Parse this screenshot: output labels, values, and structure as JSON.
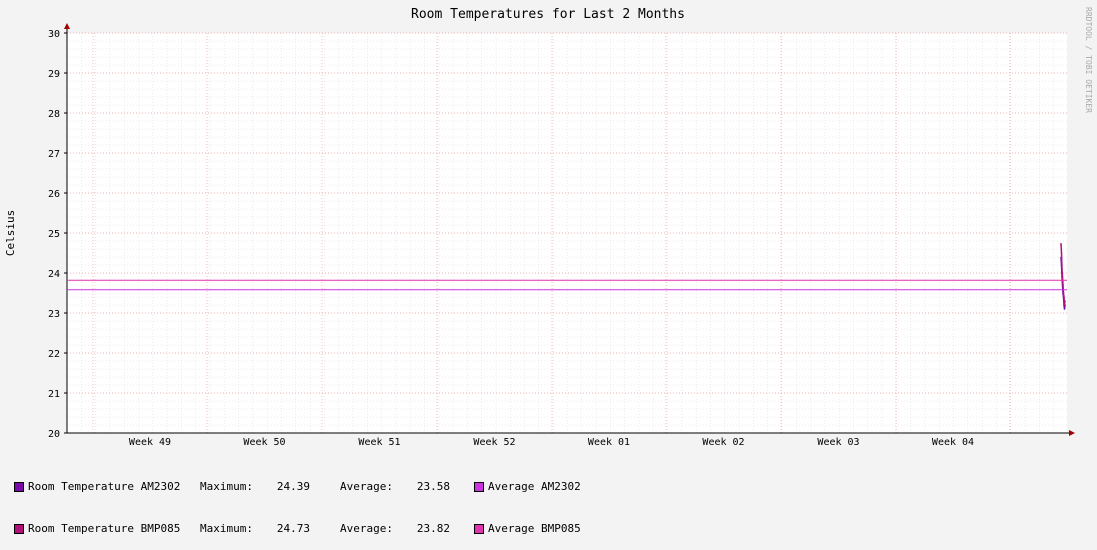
{
  "chart_data": {
    "type": "line",
    "title": "Room Temperatures for Last 2 Months",
    "ylabel": "Celsius",
    "watermark": "RRDTOOL / TOBI OETIKER",
    "ylim": [
      20,
      30
    ],
    "yticks": [
      "20",
      "21",
      "22",
      "23",
      "24",
      "25",
      "26",
      "27",
      "28",
      "29",
      "30"
    ],
    "xticks": [
      "Week 49",
      "Week 50",
      "Week 51",
      "Week 52",
      "Week 01",
      "Week 02",
      "Week 03",
      "Week 04"
    ],
    "grid": true,
    "series": [
      {
        "name": "Room Temperature AM2302",
        "color": "#7a0aa8",
        "x": [
          0.994,
          0.9945,
          0.995,
          0.9955,
          0.996,
          0.9965,
          0.997,
          0.9975,
          0.998
        ],
        "values": [
          24.39,
          24.2,
          23.9,
          23.7,
          23.5,
          23.4,
          23.2,
          23.1,
          23.2
        ]
      },
      {
        "name": "Room Temperature BMP085",
        "color": "#b0127a",
        "x": [
          0.994,
          0.9945,
          0.995,
          0.9955,
          0.996,
          0.9965,
          0.997,
          0.9975,
          0.998
        ],
        "values": [
          24.73,
          24.5,
          24.1,
          23.9,
          23.7,
          23.5,
          23.4,
          23.2,
          23.3
        ]
      },
      {
        "name": "Average AM2302",
        "color": "#cc33e0",
        "constant": 23.58
      },
      {
        "name": "Average BMP085",
        "color": "#e033b0",
        "constant": 23.82
      }
    ]
  },
  "legend": [
    {
      "name": "Room Temperature AM2302",
      "max_label": "Maximum:",
      "max_value": "24.39",
      "avg_label": "Average:",
      "avg_value": "23.58",
      "color": "#7a0aa8"
    },
    {
      "name": "Room Temperature BMP085",
      "max_label": "Maximum:",
      "max_value": "24.73",
      "avg_label": "Average:",
      "avg_value": "23.82",
      "color": "#b0127a"
    }
  ],
  "legend_avg": [
    {
      "name": "Average AM2302",
      "color": "#cc33e0"
    },
    {
      "name": "Average BMP085",
      "color": "#e033b0"
    }
  ]
}
